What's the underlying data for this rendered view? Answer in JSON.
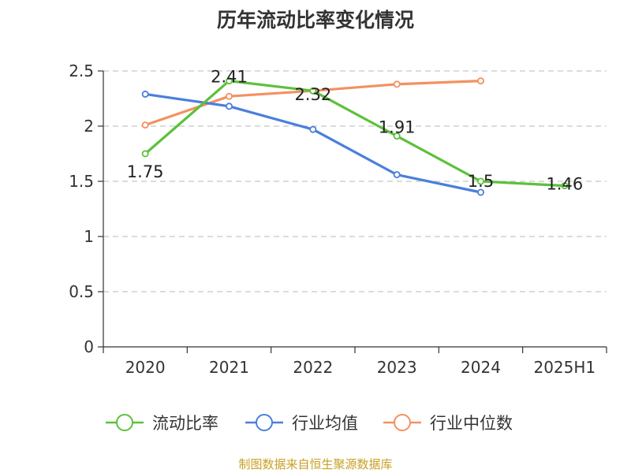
{
  "chart_data": {
    "type": "line",
    "title": "历年流动比率变化情况",
    "categories": [
      "2020",
      "2021",
      "2022",
      "2023",
      "2024",
      "2025H1"
    ],
    "ylim": [
      0,
      2.5
    ],
    "yticks": [
      "0",
      "0.5",
      "1",
      "1.5",
      "2",
      "2.5"
    ],
    "grid": true,
    "legend_position": "bottom",
    "series": [
      {
        "name": "流动比率",
        "color": "#5cc13a",
        "values": [
          1.75,
          2.41,
          2.32,
          1.91,
          1.5,
          1.46
        ],
        "labels": [
          "1.75",
          "2.41",
          "2.32",
          "1.91",
          "1.5",
          "1.46"
        ]
      },
      {
        "name": "行业均值",
        "color": "#4a7fdc",
        "values": [
          2.29,
          2.18,
          1.97,
          1.56,
          1.4,
          null
        ]
      },
      {
        "name": "行业中位数",
        "color": "#f39161",
        "values": [
          2.01,
          2.27,
          2.32,
          2.38,
          2.41,
          null
        ]
      }
    ]
  },
  "source": "制图数据来自恒生聚源数据库"
}
